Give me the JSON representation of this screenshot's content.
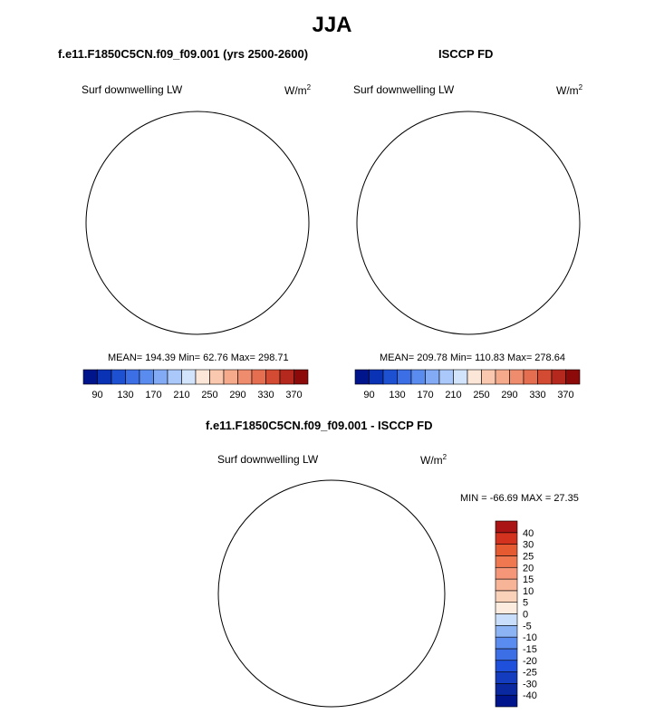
{
  "figure": {
    "title": "JJA"
  },
  "panels": [
    {
      "id": "model",
      "title": "f.e11.F1850C5CN.f09_f09.001 (yrs 2500-2600)",
      "variable": "Surf downwelling LW",
      "units_base": "W/m",
      "units_exp": "2",
      "stats": "MEAN= 194.39  Min= 62.76  Max= 298.71"
    },
    {
      "id": "obs",
      "title": "ISCCP FD",
      "variable": "Surf downwelling LW",
      "units_base": "W/m",
      "units_exp": "2",
      "stats": "MEAN= 209.78  Min= 110.83  Max= 278.64"
    },
    {
      "id": "diff",
      "title": "f.e11.F1850C5CN.f09_f09.001 - ISCCP FD",
      "variable": "Surf downwelling LW",
      "units_base": "W/m",
      "units_exp": "2",
      "stats": "MIN = -66.69 MAX =  27.35"
    }
  ],
  "chart_data": [
    {
      "type": "heatmap",
      "projection": "south-polar-stereographic",
      "title": "f.e11.F1850C5CN.f09_f09.001 (yrs 2500-2600)",
      "field": "Surf downwelling LW",
      "units": "W/m2",
      "mean": 194.39,
      "min": 62.76,
      "max": 298.71,
      "colorbar": {
        "orientation": "horizontal",
        "levels": [
          90,
          110,
          130,
          150,
          170,
          190,
          210,
          230,
          250,
          270,
          290,
          310,
          330,
          350,
          370
        ],
        "tick_labels": [
          "90",
          "130",
          "170",
          "210",
          "250",
          "290",
          "330",
          "370"
        ],
        "colors": [
          "#00148c",
          "#0a32b4",
          "#1e50d2",
          "#3c6ee6",
          "#5a8cf0",
          "#82aaf5",
          "#aac8fa",
          "#d2e4fc",
          "#fbe6d7",
          "#fac8af",
          "#f5aa8c",
          "#f08c6e",
          "#e66e50",
          "#d24b32",
          "#b4281e",
          "#8c0a0a"
        ]
      }
    },
    {
      "type": "heatmap",
      "projection": "south-polar-stereographic",
      "title": "ISCCP FD",
      "field": "Surf downwelling LW",
      "units": "W/m2",
      "mean": 209.78,
      "min": 110.83,
      "max": 278.64,
      "colorbar": {
        "orientation": "horizontal",
        "levels": [
          90,
          110,
          130,
          150,
          170,
          190,
          210,
          230,
          250,
          270,
          290,
          310,
          330,
          350,
          370
        ],
        "tick_labels": [
          "90",
          "130",
          "170",
          "210",
          "250",
          "290",
          "330",
          "370"
        ],
        "colors": [
          "#00148c",
          "#0a32b4",
          "#1e50d2",
          "#3c6ee6",
          "#5a8cf0",
          "#82aaf5",
          "#aac8fa",
          "#d2e4fc",
          "#fbe6d7",
          "#fac8af",
          "#f5aa8c",
          "#f08c6e",
          "#e66e50",
          "#d24b32",
          "#b4281e",
          "#8c0a0a"
        ]
      }
    },
    {
      "type": "heatmap",
      "projection": "south-polar-stereographic",
      "title": "f.e11.F1850C5CN.f09_f09.001 - ISCCP FD",
      "field": "Surf downwelling LW",
      "units": "W/m2",
      "min": -66.69,
      "max": 27.35,
      "colorbar": {
        "orientation": "vertical",
        "levels": [
          -40,
          -30,
          -25,
          -20,
          -15,
          -10,
          -5,
          0,
          5,
          10,
          15,
          20,
          25,
          30,
          40
        ],
        "tick_labels": [
          "-40",
          "-30",
          "-25",
          "-20",
          "-15",
          "-10",
          "-5",
          "0",
          "5",
          "10",
          "15",
          "20",
          "25",
          "30",
          "40"
        ],
        "colors": [
          "#00148c",
          "#0a28a0",
          "#143cbe",
          "#1e50dc",
          "#3c6ee6",
          "#5a8cf0",
          "#8cb4f5",
          "#c8defa",
          "#fcecdf",
          "#fad2b9",
          "#f8b496",
          "#f59678",
          "#f07850",
          "#e65a32",
          "#d2321e",
          "#aa1414"
        ]
      }
    }
  ]
}
